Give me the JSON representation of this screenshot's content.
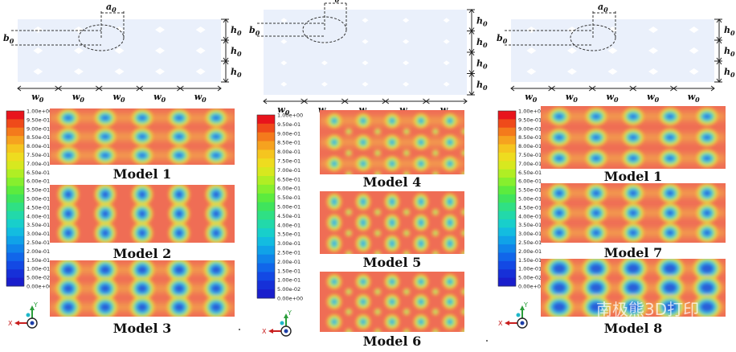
{
  "panels": [
    {
      "id": "left",
      "dims": {
        "a": "a",
        "a_sub": "0",
        "b": "b",
        "b_sub": "0",
        "h": "h",
        "h_sub": "0",
        "w": "w",
        "w_sub": "0"
      },
      "models": [
        "Model 1",
        "Model 2",
        "Model 3"
      ]
    },
    {
      "id": "middle",
      "dims": {
        "a": "a",
        "a_sub": "0",
        "b": "b",
        "b_sub": "0",
        "h": "h",
        "h_sub": "0",
        "w": "w",
        "w_sub": "0"
      },
      "models": [
        "Model 4",
        "Model 5",
        "Model 6"
      ]
    },
    {
      "id": "right",
      "dims": {
        "a": "a",
        "a_sub": "0",
        "b": "b",
        "b_sub": "0",
        "h": "h",
        "h_sub": "0",
        "w": "w",
        "w_sub": "0"
      },
      "models": [
        "Model 1",
        "Model 7",
        "Model 8"
      ]
    }
  ],
  "legend_ticks": [
    "1.00e+00",
    "9.50e-01",
    "9.00e-01",
    "8.50e-01",
    "8.00e-01",
    "7.50e-01",
    "7.00e-01",
    "6.50e-01",
    "6.00e-01",
    "5.50e-01",
    "5.00e-01",
    "4.50e-01",
    "4.00e-01",
    "3.50e-01",
    "3.00e-01",
    "2.50e-01",
    "2.00e-01",
    "1.50e-01",
    "1.00e-01",
    "5.00e-02",
    "0.00e+00"
  ],
  "legend_colors": [
    "#e8141c",
    "#ef4a1a",
    "#f47a1c",
    "#f6a21f",
    "#f5c51f",
    "#eedc1f",
    "#d7e81f",
    "#b0ee24",
    "#86ef2e",
    "#5ceb3e",
    "#3fe45c",
    "#2fe084",
    "#22d9aa",
    "#18cfcb",
    "#13bce0",
    "#10a2e8",
    "#1084ea",
    "#1166ea",
    "#1349e4",
    "#1630d8",
    "#1a1ecc"
  ],
  "axis": {
    "y_label": "Y",
    "x_label": "X"
  },
  "watermark": "南极熊3D打印"
}
